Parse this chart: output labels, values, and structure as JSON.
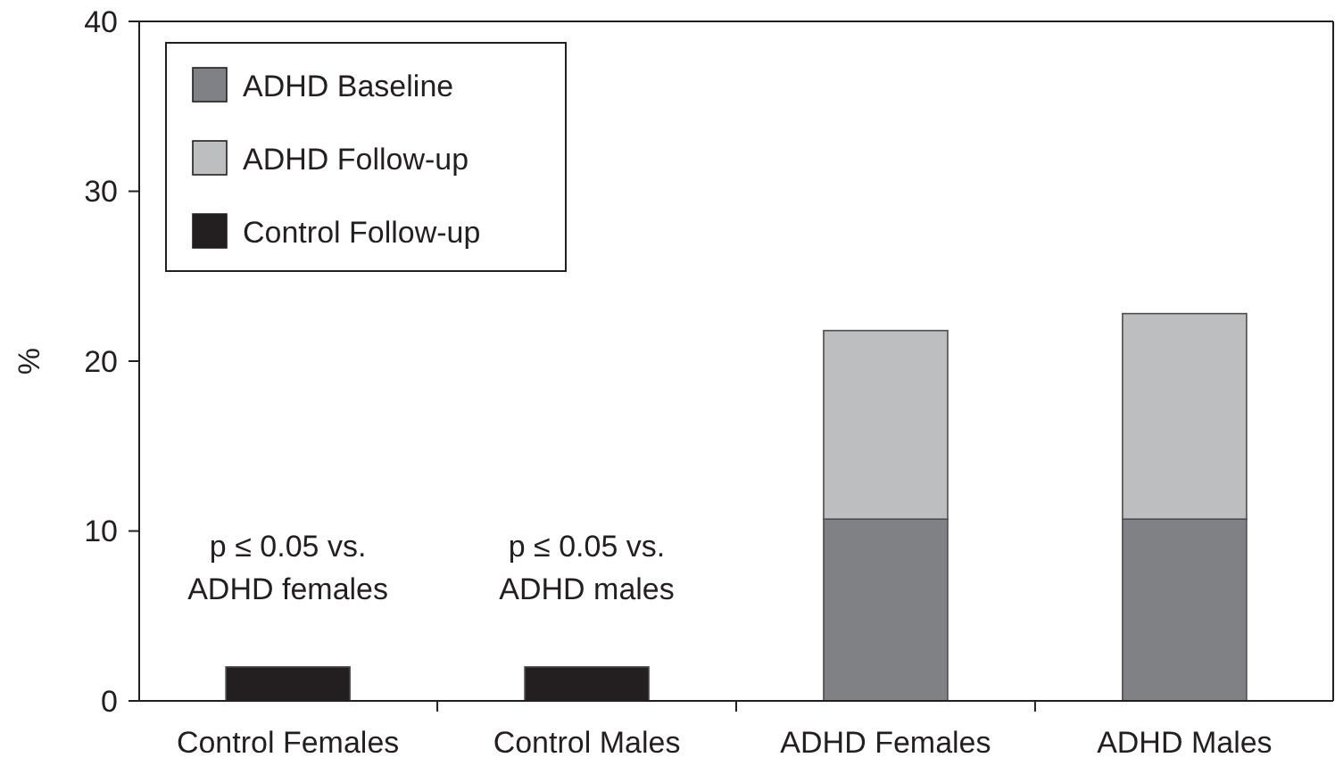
{
  "chart_data": {
    "type": "bar",
    "stacked": true,
    "ylabel": "%",
    "categories": [
      "Control Females",
      "Control Males",
      "ADHD Females",
      "ADHD Males"
    ],
    "series": [
      {
        "name": "ADHD Baseline",
        "color": "#808184",
        "values": [
          null,
          null,
          10.7,
          10.7
        ]
      },
      {
        "name": "ADHD Follow-up",
        "color": "#bcbec0",
        "values": [
          null,
          null,
          11.1,
          12.1
        ]
      },
      {
        "name": "Control Follow-up",
        "color": "#231f20",
        "values": [
          2.0,
          2.0,
          null,
          null
        ]
      }
    ],
    "ylim": [
      0,
      40
    ],
    "yticks": [
      0,
      10,
      20,
      30,
      40
    ],
    "grid": false,
    "legend": "top left",
    "annotations": [
      {
        "text": "p ≤ 0.05 vs.\nADHD females",
        "x": "Control Females",
        "y": 2.0
      },
      {
        "text": "p ≤ 0.05 vs.\nADHD males",
        "x": "Control Males",
        "y": 2.0
      }
    ]
  }
}
